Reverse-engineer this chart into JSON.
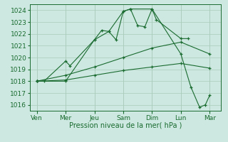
{
  "background_color": "#cce8e0",
  "grid_color": "#aaccbb",
  "line_color": "#1a6b30",
  "x_labels": [
    "Ven",
    "Mer",
    "Jeu",
    "Sam",
    "Dim",
    "Lun",
    "Mar"
  ],
  "x_positions": [
    0,
    2,
    4,
    6,
    8,
    10,
    12
  ],
  "xlabel": "Pression niveau de la mer( hPa )",
  "ylim": [
    1015.5,
    1024.5
  ],
  "yticks": [
    1016,
    1017,
    1018,
    1019,
    1020,
    1021,
    1022,
    1023,
    1024
  ],
  "series": [
    {
      "x": [
        0,
        0.5,
        2,
        2.3,
        4,
        4.5,
        5.0,
        5.5,
        6.0,
        6.5,
        7.0,
        7.5,
        8.0,
        8.3,
        10,
        10.5
      ],
      "y": [
        1018,
        1018,
        1019.7,
        1019.3,
        1021.5,
        1022.3,
        1022.2,
        1021.5,
        1023.9,
        1024.1,
        1022.7,
        1022.6,
        1024.1,
        1023.2,
        1021.6,
        1021.6
      ]
    },
    {
      "x": [
        0,
        2,
        4,
        5.0,
        6.0,
        6.5,
        8.0,
        10,
        10.7,
        11.3,
        11.7,
        12.0
      ],
      "y": [
        1018,
        1018,
        1021.5,
        1022.2,
        1023.9,
        1024.1,
        1024.1,
        1020.3,
        1017.5,
        1015.8,
        1016.0,
        1016.8
      ]
    },
    {
      "x": [
        0,
        2,
        4,
        6,
        8,
        10,
        12
      ],
      "y": [
        1018,
        1018.5,
        1019.2,
        1020.0,
        1020.8,
        1021.3,
        1020.3
      ]
    },
    {
      "x": [
        0,
        2,
        4,
        6,
        8,
        10,
        12
      ],
      "y": [
        1018,
        1018.1,
        1018.5,
        1018.9,
        1019.2,
        1019.5,
        1019.1
      ]
    }
  ]
}
